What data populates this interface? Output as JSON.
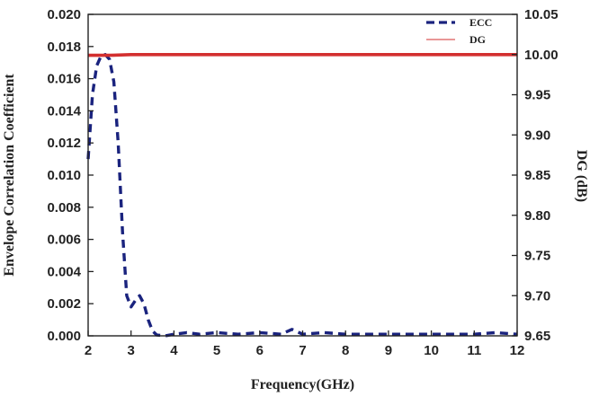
{
  "chart_data": {
    "type": "line",
    "xlabel": "Frequency(GHz)",
    "ylabel_left": "Envelope Correlation Coefficient",
    "ylabel_right": "DG (dB)",
    "xlim": [
      2,
      12
    ],
    "ylim_left": [
      0,
      0.02
    ],
    "ylim_right": [
      9.65,
      10.05
    ],
    "x_ticks": [
      "2",
      "3",
      "4",
      "5",
      "6",
      "7",
      "8",
      "9",
      "10",
      "11",
      "12"
    ],
    "y_left_ticks": [
      "0.000",
      "0.002",
      "0.004",
      "0.006",
      "0.008",
      "0.010",
      "0.012",
      "0.014",
      "0.016",
      "0.018",
      "0.020"
    ],
    "y_right_ticks": [
      "9.65",
      "9.70",
      "9.75",
      "9.80",
      "9.85",
      "9.90",
      "9.95",
      "10.00",
      "10.05"
    ],
    "grid": false,
    "legend_position": "top-right",
    "series": [
      {
        "name": "ECC",
        "axis": "left",
        "color": "#1a237e",
        "style": "dashed",
        "x": [
          2.0,
          2.1,
          2.2,
          2.3,
          2.4,
          2.5,
          2.6,
          2.7,
          2.8,
          2.9,
          3.0,
          3.1,
          3.2,
          3.3,
          3.4,
          3.5,
          3.6,
          3.8,
          4.0,
          4.3,
          4.6,
          5.0,
          5.5,
          6.0,
          6.5,
          6.75,
          7.0,
          7.5,
          8.0,
          9.0,
          10.0,
          11.0,
          11.5,
          12.0
        ],
        "y": [
          0.011,
          0.015,
          0.0168,
          0.0174,
          0.0175,
          0.0172,
          0.0158,
          0.012,
          0.0065,
          0.0025,
          0.0018,
          0.0022,
          0.0025,
          0.002,
          0.001,
          0.0003,
          5e-05,
          0.0,
          0.0001,
          0.0002,
          0.0001,
          0.0002,
          0.0001,
          0.0002,
          0.0001,
          0.0004,
          0.0001,
          0.0002,
          0.0001,
          0.0001,
          0.0001,
          0.0001,
          0.0002,
          0.0001
        ]
      },
      {
        "name": "DG",
        "axis": "right",
        "color": "#d32f2f",
        "style": "solid",
        "x": [
          2.0,
          2.5,
          3.0,
          4.0,
          5.0,
          6.0,
          7.0,
          8.0,
          9.0,
          10.0,
          11.0,
          12.0
        ],
        "y": [
          9.999,
          9.999,
          10.0,
          10.0,
          10.0,
          10.0,
          10.0,
          10.0,
          10.0,
          10.0,
          10.0,
          10.0
        ]
      }
    ]
  }
}
